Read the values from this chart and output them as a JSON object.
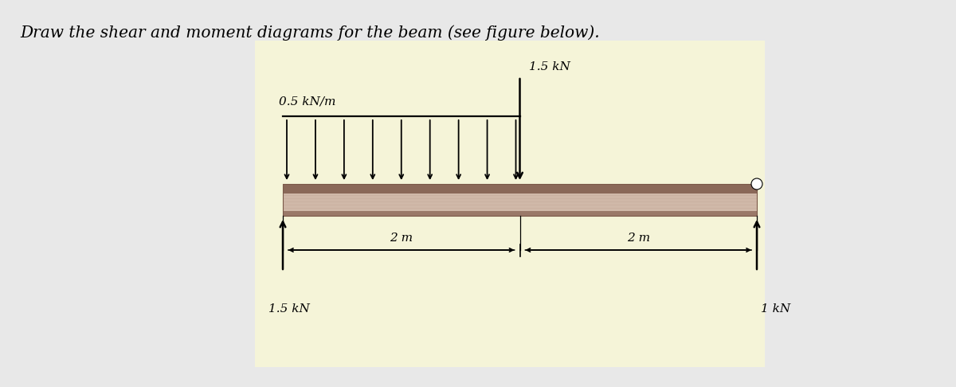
{
  "title": "Draw the shear and moment diagrams for the beam (see figure below).",
  "title_fontsize": 14.5,
  "bg_color": "#e8e8e8",
  "box_bg": "#f5f4d8",
  "beam_face_color": "#d4b8a8",
  "beam_top_stripe": "#9a7060",
  "beam_bottom_stripe": "#b89080",
  "dist_load_label": "0.5 kN/m",
  "point_load_label": "1.5 kN",
  "reaction_left_label": "1.5 kN",
  "reaction_right_label": "1 kN",
  "dim_label_left": "2 m",
  "dim_label_right": "2 m"
}
